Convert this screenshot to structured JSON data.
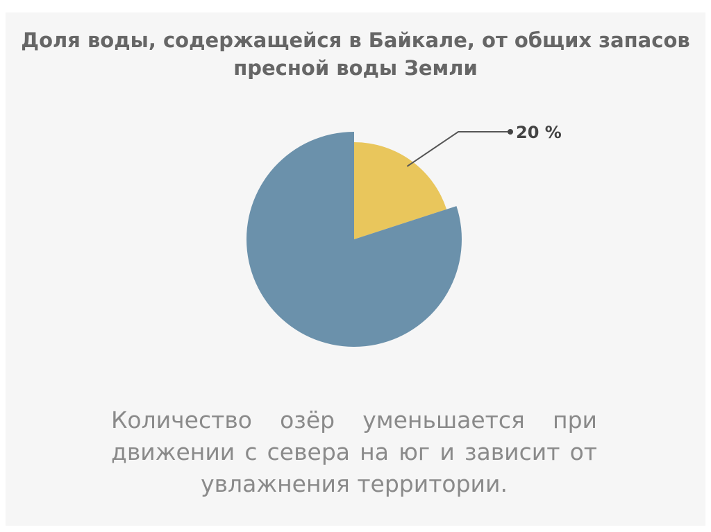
{
  "chart_data": {
    "type": "pie",
    "title": "Доля воды, содержащейся в Байкале, от общих запасов пресной воды Земли",
    "values": [
      20,
      80
    ],
    "value_labels": [
      "20 %",
      null
    ],
    "colors": [
      "#e9c65c",
      "#6b91ab"
    ]
  },
  "caption": "Количество озёр уменьшается при движении с севера на юг и зависит от увлажнения территории."
}
